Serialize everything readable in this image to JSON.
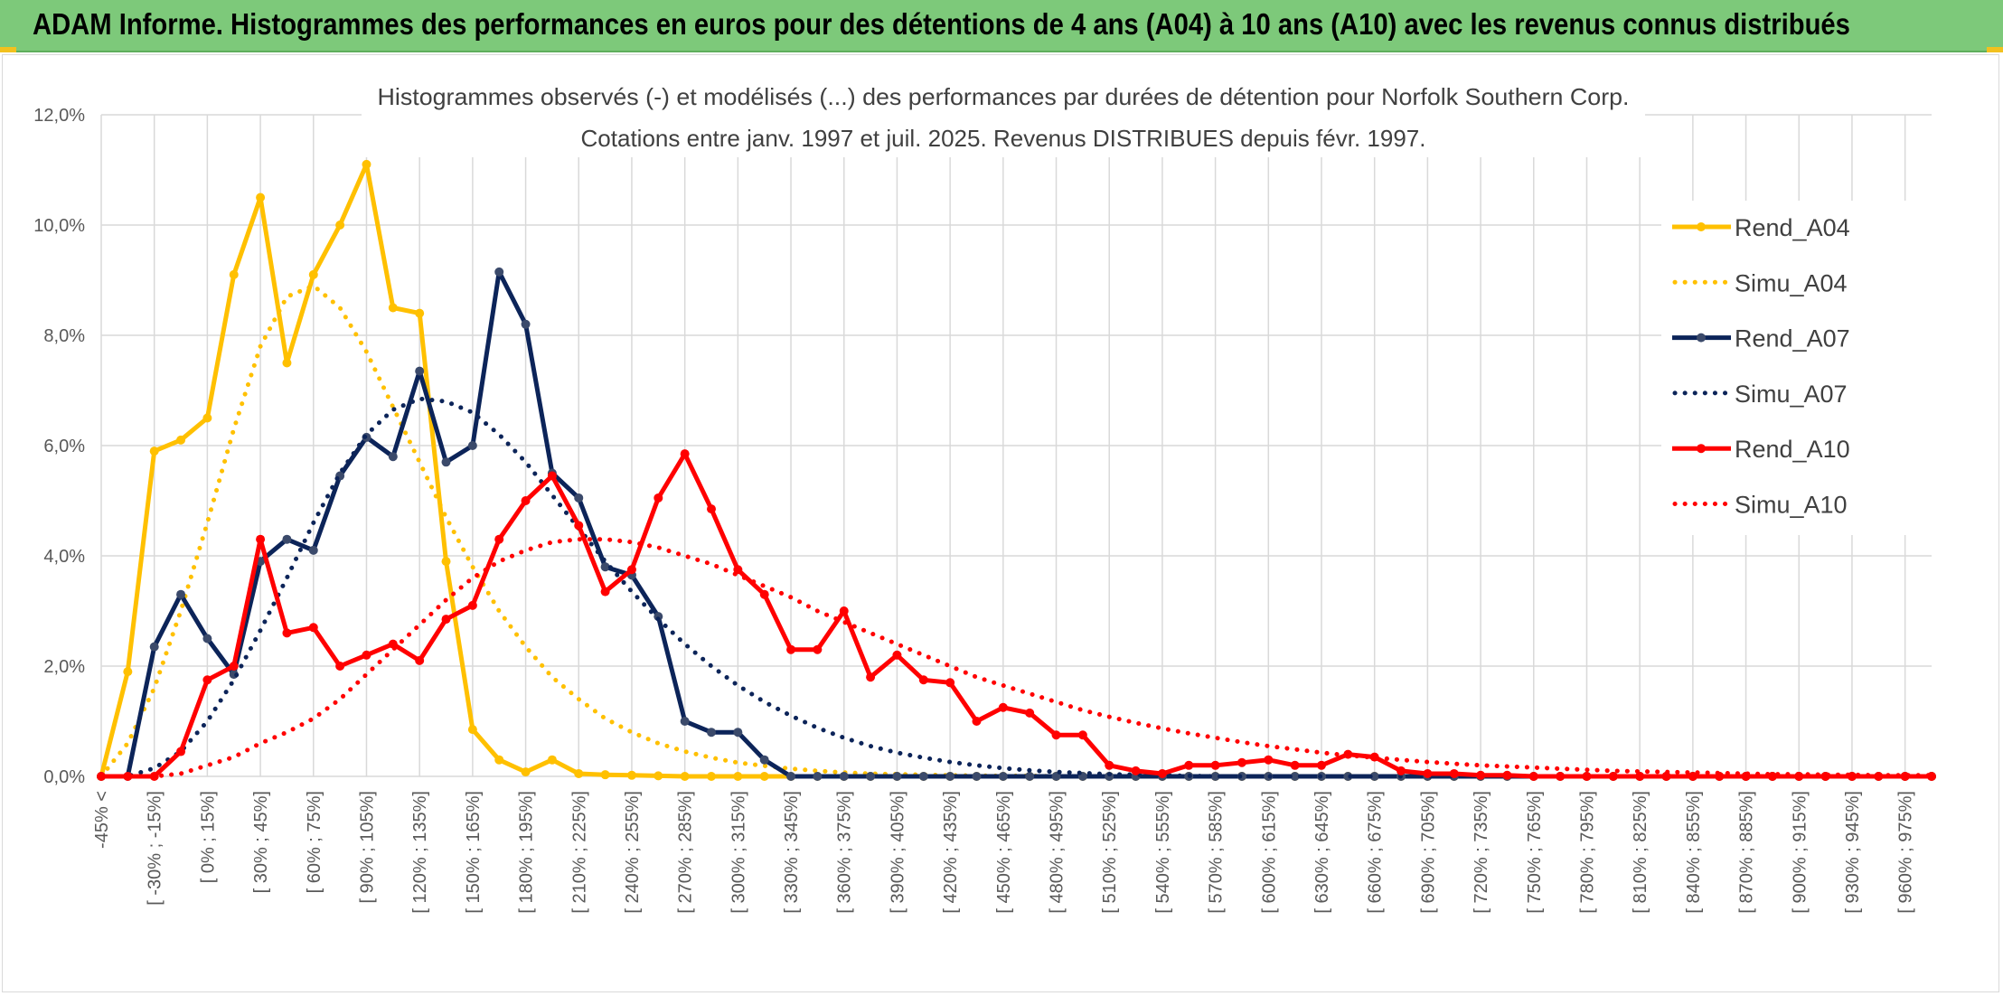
{
  "banner": {
    "title": "ADAM Informe. Histogrammes des performances en euros pour des détentions de 4 ans (A04) à 10 ans (A10) avec les revenus connus distribués"
  },
  "chart_data": {
    "type": "line",
    "title": "Histogrammes observés (-) et modélisés (...) des performances par durées de détention pour Norfolk Southern Corp.",
    "subtitle": "Cotations entre janv. 1997 et juil. 2025. Revenus DISTRIBUES depuis févr. 1997.",
    "xlabel": "",
    "ylabel": "",
    "ylim": [
      0,
      12
    ],
    "yticks": [
      "0,0%",
      "2,0%",
      "4,0%",
      "6,0%",
      "8,0%",
      "10,0%",
      "12,0%"
    ],
    "grid": true,
    "legend_position": "right",
    "categories": [
      "-45% <",
      "",
      "[ -30% ; -15%]",
      "",
      "[ 0% ; 15%]",
      "",
      "[ 30% ; 45%]",
      "",
      "[ 60% ; 75%]",
      "",
      "[ 90% ; 105%]",
      "",
      "[ 120% ; 135%]",
      "",
      "[ 150% ; 165%]",
      "",
      "[ 180% ; 195%]",
      "",
      "[ 210% ; 225%]",
      "",
      "[ 240% ; 255%]",
      "",
      "[ 270% ; 285%]",
      "",
      "[ 300% ; 315%]",
      "",
      "[ 330% ; 345%]",
      "",
      "[ 360% ; 375%]",
      "",
      "[ 390% ; 405%]",
      "",
      "[ 420% ; 435%]",
      "",
      "[ 450% ; 465%]",
      "",
      "[ 480% ; 495%]",
      "",
      "[ 510% ; 525%]",
      "",
      "[ 540% ; 555%]",
      "",
      "[ 570% ; 585%]",
      "",
      "[ 600% ; 615%]",
      "",
      "[ 630% ; 645%]",
      "",
      "[ 660% ; 675%]",
      "",
      "[ 690% ; 705%]",
      "",
      "[ 720% ; 735%]",
      "",
      "[ 750% ; 765%]",
      "",
      "[ 780% ; 795%]",
      "",
      "[ 810% ; 825%]",
      "",
      "[ 840% ; 855%]",
      "",
      "[ 870% ; 885%]",
      "",
      "[ 900% ; 915%]",
      "",
      "[ 930% ; 945%]",
      "",
      "[ 960% ; 975%]",
      ""
    ],
    "series": [
      {
        "name": "Rend_A04",
        "style": "solid",
        "color": "#ffc000",
        "values": [
          0,
          1.9,
          5.9,
          6.1,
          6.5,
          9.1,
          10.5,
          7.5,
          9.1,
          10.0,
          11.1,
          8.5,
          8.4,
          3.9,
          0.85,
          0.3,
          0.08,
          0.3,
          0.05,
          0.03,
          0.02,
          0.01,
          0,
          0,
          0,
          0,
          0,
          0,
          0,
          0,
          0,
          0,
          0,
          0,
          0,
          0,
          0,
          0,
          0,
          0,
          0,
          0,
          0,
          0,
          0,
          0,
          0,
          0,
          0,
          0,
          0,
          0,
          0,
          0,
          0,
          0,
          0,
          0,
          0,
          0,
          0,
          0,
          0,
          0,
          0,
          0,
          0,
          0,
          0,
          0
        ]
      },
      {
        "name": "Simu_A04",
        "style": "dotted",
        "color": "#ffc000",
        "values": [
          0,
          0.6,
          1.6,
          3.0,
          4.6,
          6.3,
          7.8,
          8.7,
          8.9,
          8.5,
          7.7,
          6.7,
          5.7,
          4.7,
          3.8,
          3.0,
          2.35,
          1.8,
          1.4,
          1.05,
          0.8,
          0.6,
          0.45,
          0.34,
          0.25,
          0.19,
          0.14,
          0.1,
          0.07,
          0.05,
          0.04,
          0.03,
          0.02,
          0.015,
          0.01,
          0.01,
          0,
          0,
          0,
          0,
          0,
          0,
          0,
          0,
          0,
          0,
          0,
          0,
          0,
          0,
          0,
          0,
          0,
          0,
          0,
          0,
          0,
          0,
          0,
          0,
          0,
          0,
          0,
          0,
          0,
          0,
          0,
          0,
          0,
          0
        ]
      },
      {
        "name": "Rend_A07",
        "style": "solid",
        "color": "#0c2459",
        "values": [
          0,
          0,
          2.35,
          3.3,
          2.5,
          1.85,
          3.9,
          4.3,
          4.1,
          5.45,
          6.15,
          5.8,
          7.35,
          5.7,
          6.0,
          9.15,
          8.2,
          5.5,
          5.05,
          3.8,
          3.65,
          2.9,
          1.0,
          0.8,
          0.8,
          0.3,
          0,
          0,
          0,
          0,
          0,
          0,
          0,
          0,
          0,
          0,
          0,
          0,
          0,
          0,
          0,
          0,
          0,
          0,
          0,
          0,
          0,
          0,
          0,
          0,
          0,
          0,
          0,
          0,
          0,
          0,
          0,
          0,
          0,
          0,
          0,
          0,
          0,
          0,
          0,
          0,
          0,
          0,
          0,
          0
        ]
      },
      {
        "name": "Simu_A07",
        "style": "dotted",
        "color": "#0c2459",
        "values": [
          0,
          0,
          0.15,
          0.45,
          1.0,
          1.75,
          2.65,
          3.6,
          4.6,
          5.5,
          6.2,
          6.65,
          6.85,
          6.8,
          6.6,
          6.2,
          5.7,
          5.1,
          4.5,
          3.9,
          3.35,
          2.85,
          2.4,
          2.0,
          1.65,
          1.35,
          1.1,
          0.88,
          0.7,
          0.55,
          0.43,
          0.34,
          0.26,
          0.2,
          0.15,
          0.11,
          0.08,
          0.06,
          0.04,
          0.03,
          0.02,
          0.01,
          0,
          0,
          0,
          0,
          0,
          0,
          0,
          0,
          0,
          0,
          0,
          0,
          0,
          0,
          0,
          0,
          0,
          0,
          0,
          0,
          0,
          0,
          0,
          0,
          0,
          0,
          0,
          0
        ]
      },
      {
        "name": "Rend_A10",
        "style": "solid",
        "color": "#ff0000",
        "values": [
          0,
          0,
          0,
          0.45,
          1.75,
          2.0,
          4.3,
          2.6,
          2.7,
          2.0,
          2.2,
          2.4,
          2.1,
          2.85,
          3.1,
          4.3,
          5.0,
          5.45,
          4.55,
          3.35,
          3.75,
          5.05,
          5.85,
          4.85,
          3.75,
          3.3,
          2.3,
          2.3,
          3.0,
          1.8,
          2.2,
          1.75,
          1.7,
          1.0,
          1.25,
          1.15,
          0.75,
          0.75,
          0.2,
          0.1,
          0.05,
          0.2,
          0.2,
          0.25,
          0.3,
          0.2,
          0.2,
          0.4,
          0.35,
          0.1,
          0.05,
          0.05,
          0.02,
          0.02,
          0,
          0,
          0,
          0,
          0,
          0,
          0,
          0,
          0,
          0,
          0,
          0,
          0,
          0,
          0,
          0
        ]
      },
      {
        "name": "Simu_A10",
        "style": "dotted",
        "color": "#ff0000",
        "values": [
          0,
          0,
          0,
          0.05,
          0.2,
          0.35,
          0.6,
          0.8,
          1.05,
          1.4,
          1.85,
          2.3,
          2.75,
          3.2,
          3.6,
          3.9,
          4.1,
          4.25,
          4.3,
          4.3,
          4.25,
          4.15,
          4.0,
          3.85,
          3.65,
          3.45,
          3.25,
          3.0,
          2.8,
          2.6,
          2.4,
          2.2,
          2.0,
          1.8,
          1.65,
          1.5,
          1.35,
          1.2,
          1.08,
          0.97,
          0.87,
          0.78,
          0.7,
          0.62,
          0.55,
          0.49,
          0.43,
          0.38,
          0.34,
          0.3,
          0.26,
          0.23,
          0.2,
          0.18,
          0.16,
          0.14,
          0.12,
          0.1,
          0.09,
          0.08,
          0.07,
          0.06,
          0.05,
          0.04,
          0.04,
          0.03,
          0.03,
          0.02,
          0.02,
          0.02
        ]
      }
    ]
  }
}
